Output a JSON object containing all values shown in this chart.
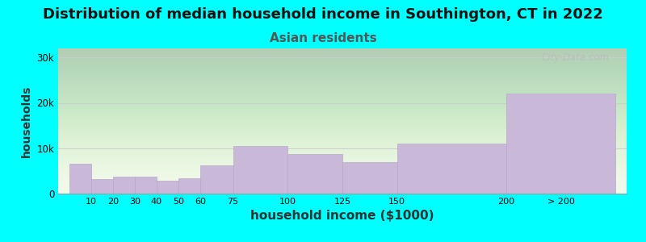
{
  "title": "Distribution of median household income in Southington, CT in 2022",
  "subtitle": "Asian residents",
  "xlabel": "household income ($1000)",
  "ylabel": "households",
  "background_color": "#00FFFF",
  "bar_color": "#c9b8d8",
  "bar_edge_color": "#b8a8cc",
  "categories": [
    "10",
    "20",
    "30",
    "40",
    "50",
    "60",
    "75",
    "100",
    "125",
    "150",
    "200",
    "> 200"
  ],
  "values": [
    6500,
    3200,
    3700,
    3800,
    2800,
    3300,
    6200,
    10500,
    8800,
    7000,
    11000,
    22000
  ],
  "bin_lefts": [
    0,
    10,
    20,
    30,
    40,
    50,
    60,
    75,
    100,
    125,
    150,
    200
  ],
  "bin_rights": [
    10,
    20,
    30,
    40,
    50,
    60,
    75,
    100,
    125,
    150,
    200,
    250
  ],
  "ylim": [
    0,
    32000
  ],
  "yticks": [
    0,
    10000,
    20000,
    30000
  ],
  "ytick_labels": [
    "0",
    "10k",
    "20k",
    "30k"
  ],
  "title_fontsize": 13,
  "subtitle_fontsize": 11,
  "xlabel_fontsize": 11,
  "ylabel_fontsize": 10,
  "subtitle_color": "#555555",
  "watermark": "City-Data.com"
}
